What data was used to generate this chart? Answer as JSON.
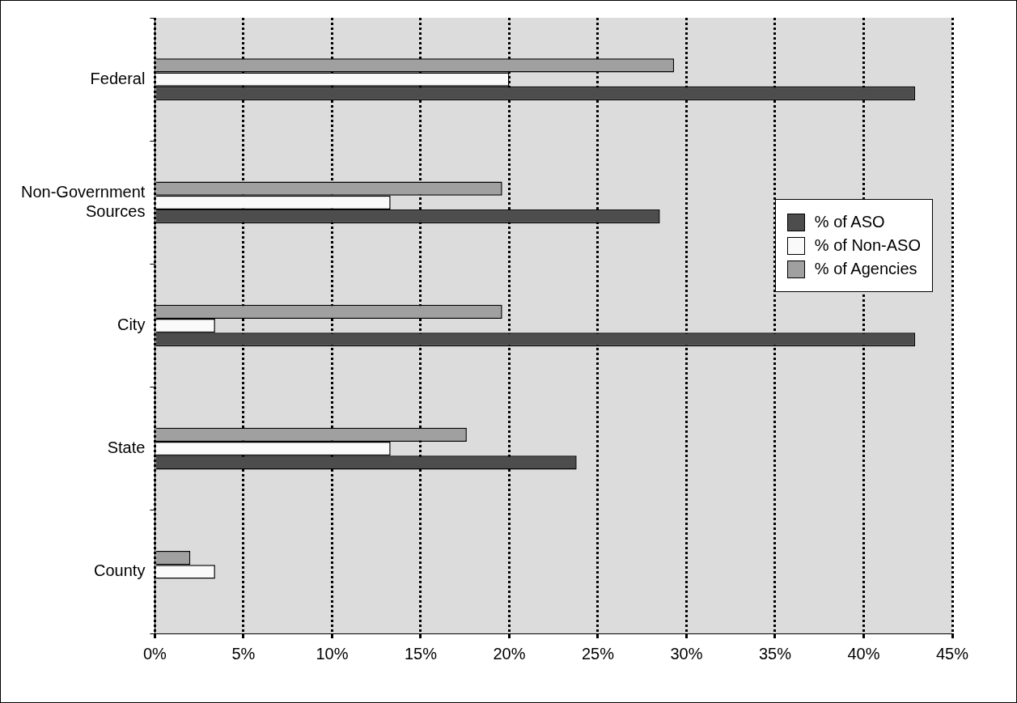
{
  "chart_data": {
    "type": "bar",
    "orientation": "horizontal",
    "categories": [
      "Federal",
      "Non-Government Sources",
      "City",
      "State",
      "County"
    ],
    "series": [
      {
        "name": "% of ASO",
        "color": "#4d4d4d",
        "values": [
          42.9,
          28.5,
          42.9,
          23.8,
          null
        ]
      },
      {
        "name": "% of Non-ASO",
        "color": "#fafafa",
        "values": [
          20.0,
          13.3,
          3.4,
          13.3,
          3.4
        ]
      },
      {
        "name": "% of Agencies",
        "color": "#a0a0a0",
        "values": [
          29.3,
          19.6,
          19.6,
          17.6,
          2.0
        ]
      }
    ],
    "xlim": [
      0,
      45
    ],
    "xticks": [
      {
        "value": 0,
        "label": "0%"
      },
      {
        "value": 5,
        "label": "5%"
      },
      {
        "value": 10,
        "label": "10%"
      },
      {
        "value": 15,
        "label": "15%"
      },
      {
        "value": 20,
        "label": "20%"
      },
      {
        "value": 25,
        "label": "25%"
      },
      {
        "value": 30,
        "label": "30%"
      },
      {
        "value": 35,
        "label": "35%"
      },
      {
        "value": 40,
        "label": "40%"
      },
      {
        "value": 45,
        "label": "45%"
      }
    ],
    "grid": "x",
    "legend": "right"
  }
}
